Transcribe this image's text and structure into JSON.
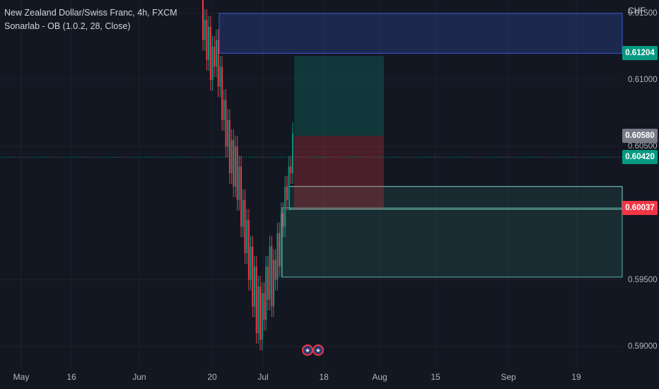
{
  "legend": {
    "symbol_line": "New Zealand Dollar/Swiss Franc, 4h, FXCM",
    "indicator_line": "Sonarlab - OB (1.0.2, 28, Close)"
  },
  "price_axis": {
    "currency": "CHF",
    "labels": [
      "0.61500",
      "0.61000",
      "0.60500",
      "0.59500",
      "0.59000"
    ]
  },
  "price_tags": [
    {
      "value": "0.61204",
      "color": "#089981"
    },
    {
      "value": "0.60580",
      "color": "#787b86"
    },
    {
      "value": "0.60420",
      "color": "#089981"
    },
    {
      "value": "0.60037",
      "color": "#f23645"
    }
  ],
  "time_axis": {
    "labels": [
      "May",
      "16",
      "Jun",
      "20",
      "Jul",
      "18",
      "Aug",
      "15",
      "Sep",
      "19"
    ]
  },
  "event_icons": [
    "flag-nz-icon",
    "flag-nz-icon"
  ],
  "chart_data": {
    "type": "candlestick",
    "instrument": "New Zealand Dollar/Swiss Franc",
    "timeframe": "4h",
    "source": "FXCM",
    "ylim": [
      0.5885,
      0.616
    ],
    "current_price": 0.6042,
    "price_path": [
      [
        0.6165,
        0.613
      ],
      [
        0.613,
        0.6145
      ],
      [
        0.6145,
        0.6115
      ],
      [
        0.6115,
        0.614
      ],
      [
        0.614,
        0.61
      ],
      [
        0.61,
        0.6125
      ],
      [
        0.6125,
        0.611
      ],
      [
        0.611,
        0.613
      ],
      [
        0.613,
        0.6095
      ],
      [
        0.6095,
        0.611
      ],
      [
        0.611,
        0.607
      ],
      [
        0.607,
        0.6085
      ],
      [
        0.6085,
        0.605
      ],
      [
        0.605,
        0.607
      ],
      [
        0.607,
        0.603
      ],
      [
        0.603,
        0.6055
      ],
      [
        0.6055,
        0.602
      ],
      [
        0.602,
        0.605
      ],
      [
        0.605,
        0.601
      ],
      [
        0.601,
        0.6035
      ],
      [
        0.6035,
        0.599
      ],
      [
        0.599,
        0.601
      ],
      [
        0.601,
        0.597
      ],
      [
        0.597,
        0.5995
      ],
      [
        0.5995,
        0.595
      ],
      [
        0.595,
        0.5975
      ],
      [
        0.5975,
        0.593
      ],
      [
        0.593,
        0.596
      ],
      [
        0.596,
        0.591
      ],
      [
        0.591,
        0.5945
      ],
      [
        0.5945,
        0.5905
      ],
      [
        0.5905,
        0.594
      ],
      [
        0.594,
        0.592
      ],
      [
        0.592,
        0.596
      ],
      [
        0.596,
        0.5935
      ],
      [
        0.5935,
        0.5975
      ],
      [
        0.5975,
        0.593
      ],
      [
        0.593,
        0.5965
      ],
      [
        0.5965,
        0.595
      ],
      [
        0.595,
        0.5985
      ],
      [
        0.5985,
        0.596
      ],
      [
        0.596,
        0.6
      ],
      [
        0.6,
        0.599
      ],
      [
        0.599,
        0.602
      ],
      [
        0.602,
        0.601
      ],
      [
        0.601,
        0.6035
      ],
      [
        0.6035,
        0.603
      ],
      [
        0.603,
        0.606
      ]
    ],
    "zones": [
      {
        "name": "supply-order-block",
        "top": 0.615,
        "bottom": 0.612
      },
      {
        "name": "demand-order-block-upper",
        "top": 0.602,
        "bottom": 0.6003
      },
      {
        "name": "demand-order-block-lower",
        "top": 0.6004,
        "bottom": 0.5952
      }
    ],
    "position_tool": {
      "entry": 0.6058,
      "target": 0.6118,
      "stop": 0.6003
    }
  }
}
